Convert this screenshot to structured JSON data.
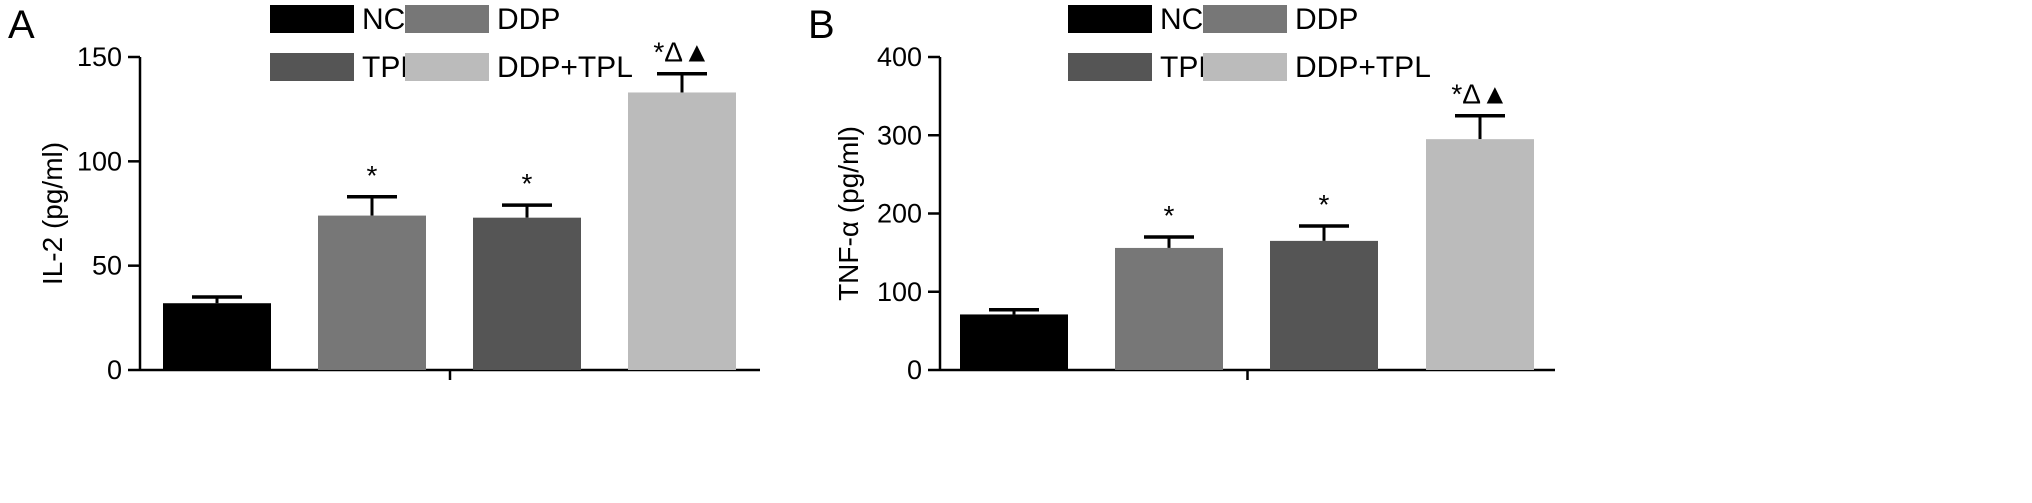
{
  "chart_data": [
    {
      "panel": "A",
      "type": "bar",
      "categories": [
        "NC",
        "DDP",
        "TPL",
        "DDP+TPL"
      ],
      "values": [
        32,
        74,
        73,
        133
      ],
      "errors": [
        3,
        9,
        6,
        9
      ],
      "significance": [
        "",
        "*",
        "*",
        "*Δ▲"
      ],
      "ylabel": "IL-2 (pg/ml)",
      "ylim": [
        0,
        150
      ],
      "yticks": [
        "0",
        "50",
        "100",
        "150"
      ],
      "legend": [
        "NC",
        "DDP",
        "TPL",
        "DDP+TPL"
      ],
      "colors": [
        "#000000",
        "#777777",
        "#555555",
        "#bbbbbb"
      ]
    },
    {
      "panel": "B",
      "type": "bar",
      "categories": [
        "NC",
        "DDP",
        "TPL",
        "DDP+TPL"
      ],
      "values": [
        71,
        156,
        165,
        295
      ],
      "errors": [
        6,
        14,
        19,
        30
      ],
      "significance": [
        "",
        "*",
        "*",
        "*Δ▲"
      ],
      "ylabel": "TNF-α (pg/ml)",
      "ylim": [
        0,
        400
      ],
      "yticks": [
        "0",
        "100",
        "200",
        "300",
        "400"
      ],
      "legend": [
        "NC",
        "DDP",
        "TPL",
        "DDP+TPL"
      ],
      "colors": [
        "#000000",
        "#777777",
        "#555555",
        "#bbbbbb"
      ]
    }
  ]
}
